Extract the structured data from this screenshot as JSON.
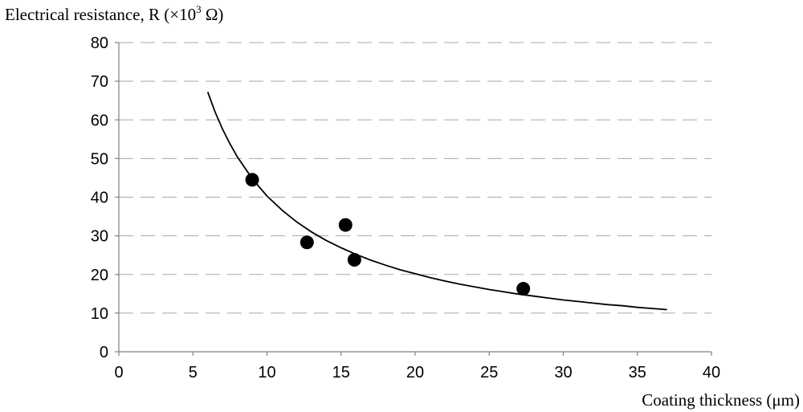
{
  "chart_data": {
    "type": "scatter",
    "ylabel_main": "Electrical resistance, R (×10",
    "ylabel_sup": "3",
    "ylabel_tail": " Ω)",
    "xlabel": "Coating thickness (μm)",
    "xlim": [
      0,
      40
    ],
    "ylim": [
      0,
      80
    ],
    "x_ticks": [
      "0",
      "5",
      "10",
      "15",
      "20",
      "25",
      "30",
      "35",
      "40"
    ],
    "y_ticks": [
      "0",
      "10",
      "20",
      "30",
      "40",
      "50",
      "60",
      "70",
      "80"
    ],
    "grid": "horizontal dashed",
    "series": [
      {
        "kind": "points",
        "x": [
          9.0,
          12.7,
          15.3,
          15.9,
          27.3
        ],
        "y": [
          44.5,
          28.3,
          32.8,
          23.8,
          16.3
        ]
      },
      {
        "kind": "fitted-curve",
        "x": [
          6,
          6.5,
          7,
          7.5,
          8,
          9,
          10,
          11,
          12,
          13,
          14,
          15,
          16,
          17,
          18,
          19,
          20,
          21,
          22,
          23,
          24,
          25,
          26,
          27,
          28,
          29,
          30,
          31,
          32,
          33,
          34,
          35,
          36,
          37
        ],
        "y": [
          67.2,
          62.0,
          57.6,
          53.8,
          50.4,
          44.8,
          40.3,
          36.7,
          33.6,
          31.0,
          28.8,
          26.9,
          25.2,
          23.7,
          22.4,
          21.2,
          20.2,
          19.2,
          18.3,
          17.5,
          16.8,
          16.1,
          15.5,
          14.9,
          14.4,
          13.9,
          13.4,
          13.0,
          12.6,
          12.2,
          11.9,
          11.5,
          11.2,
          10.9
        ]
      }
    ],
    "colors": {
      "axis": "#808080",
      "grid": "#a8a8a8",
      "marks": "#000000"
    }
  }
}
